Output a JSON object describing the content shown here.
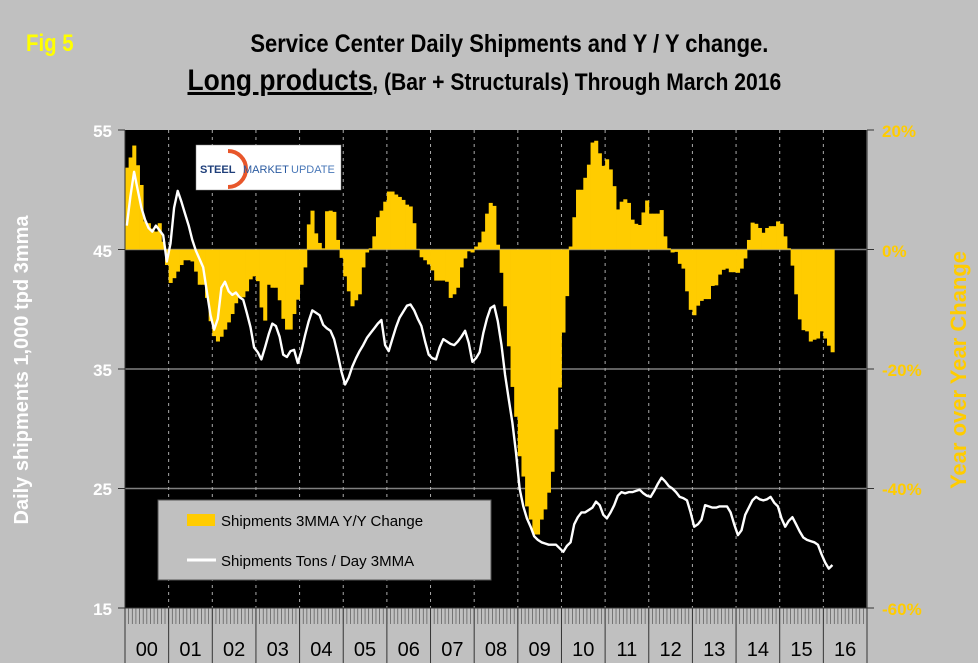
{
  "figure_label": "Fig 5",
  "title_line1": "Service Center Daily Shipments and Y / Y change.",
  "title_line2_emphasis": "Long products",
  "title_line2_rest": ", (Bar + Structurals) Through March 2016",
  "logo": {
    "word1": "STEEL",
    "word2": "MARKET",
    "word3": "UPDATE"
  },
  "colors": {
    "bars": "#ffcc00",
    "line": "#ffffff",
    "plot_bg": "#000000",
    "page_bg": "#c0c0c0",
    "fig_label": "#ffff00",
    "right_axis": "#ffcc00"
  },
  "chart_data": {
    "type": "bar+line",
    "title": "Service Center Daily Shipments and Y / Y change. Long products, (Bar + Structurals) Through March 2016",
    "x_range": [
      "2000-01",
      "2016-12"
    ],
    "x_tick_labels": [
      "00",
      "01",
      "02",
      "03",
      "04",
      "05",
      "06",
      "07",
      "08",
      "09",
      "10",
      "11",
      "12",
      "13",
      "14",
      "15",
      "16"
    ],
    "ylabel": "Daily shipments 1,000 tpd 3mma",
    "ylabel_right": "Year over Year Change",
    "ylim": [
      15,
      55
    ],
    "ylim_right": [
      -60,
      20
    ],
    "y_ticks": [
      "55",
      "45",
      "35",
      "25",
      "15"
    ],
    "y_ticks_right": [
      "20%",
      "0%",
      "-20%",
      "-40%",
      "-60%"
    ],
    "grid": "horizontal at major ticks, dotted vertical at years",
    "legend_position": "bottom-left",
    "series": [
      {
        "name": "Shipments 3MMA Y/Y Change",
        "type": "bar",
        "axis": "right",
        "unit": "%",
        "frequency": "monthly",
        "start": "2000-01",
        "values": [
          13.7,
          15.4,
          17.4,
          14.1,
          10.8,
          4.7,
          4.4,
          3.5,
          3.0,
          4.4,
          1.3,
          -2.6,
          -5.6,
          -4.8,
          -3.7,
          -2.6,
          -1.8,
          -1.8,
          -2.0,
          -3.7,
          -5.9,
          -5.9,
          -8.1,
          -12.0,
          -14.5,
          -15.4,
          -14.6,
          -13.4,
          -12.2,
          -10.8,
          -9.0,
          -8.0,
          -8.0,
          -7.0,
          -5.0,
          -4.5,
          -5.3,
          -9.7,
          -11.9,
          -5.9,
          -6.4,
          -6.4,
          -8.5,
          -11.6,
          -13.4,
          -13.4,
          -10.8,
          -8.4,
          -5.9,
          -3.0,
          4.2,
          6.5,
          2.7,
          1.1,
          0.2,
          6.4,
          6.5,
          6.3,
          1.6,
          -1.4,
          -4.5,
          -7.0,
          -9.5,
          -8.5,
          -7.5,
          -3.0,
          -0.5,
          0.2,
          2.2,
          5.4,
          6.5,
          8.0,
          9.7,
          9.7,
          9.2,
          8.8,
          8.3,
          7.5,
          7.2,
          4.4,
          0.1,
          -1.3,
          -1.8,
          -2.5,
          -3.5,
          -5.2,
          -5.2,
          -5.2,
          -5.4,
          -8.1,
          -7.5,
          -6.4,
          -3.0,
          -1.5,
          -0.3,
          -0.5,
          0.5,
          1.2,
          3.0,
          6.0,
          7.8,
          7.3,
          0.8,
          -3.9,
          -9.5,
          -16.2,
          -23.0,
          -28.0,
          -34.6,
          -38.0,
          -43.0,
          -45.2,
          -47.7,
          -47.7,
          -45.2,
          -43.5,
          -40.7,
          -37.2,
          -30.1,
          -23.1,
          -13.9,
          -7.8,
          0.5,
          5.4,
          10.0,
          10.0,
          12.0,
          14.2,
          17.9,
          18.2,
          16.1,
          14.0,
          15.1,
          13.4,
          10.6,
          6.7,
          8.0,
          8.4,
          7.8,
          5.0,
          4.3,
          4.1,
          6.2,
          8.2,
          6.0,
          6.0,
          6.0,
          6.6,
          2.2,
          0.2,
          -0.5,
          -0.4,
          -2.4,
          -3.2,
          -7.0,
          -10.1,
          -11.0,
          -9.4,
          -8.6,
          -8.3,
          -8.3,
          -6.1,
          -6.0,
          -4.2,
          -3.4,
          -3.2,
          -3.8,
          -3.8,
          -3.9,
          -3.2,
          -1.5,
          1.6,
          4.5,
          4.3,
          3.6,
          2.8,
          3.6,
          3.9,
          3.9,
          4.7,
          4.3,
          2.2,
          0.2,
          -2.7,
          -7.5,
          -11.7,
          -13.5,
          -13.7,
          -15.4,
          -15.1,
          -14.9,
          -13.7,
          -14.9,
          -16.1,
          -17.2
        ]
      },
      {
        "name": "Shipments Tons / Day 3MMA",
        "type": "line",
        "axis": "left",
        "unit": "1,000 tpd",
        "frequency": "monthly",
        "start": "2000-01",
        "values": [
          47.0,
          49.5,
          51.5,
          50.0,
          48.5,
          47.5,
          46.8,
          46.5,
          47.0,
          46.6,
          46.2,
          44.0,
          45.5,
          48.5,
          49.9,
          49.0,
          48.0,
          47.0,
          45.8,
          44.9,
          44.2,
          43.5,
          41.5,
          39.5,
          38.3,
          39.2,
          41.8,
          42.3,
          41.5,
          41.2,
          41.4,
          41.0,
          40.8,
          39.7,
          38.5,
          36.8,
          36.4,
          35.8,
          36.8,
          37.9,
          38.8,
          38.6,
          37.7,
          36.2,
          36.0,
          36.5,
          36.6,
          35.5,
          36.5,
          37.8,
          39.0,
          39.9,
          39.7,
          39.5,
          38.7,
          38.4,
          38.2,
          37.5,
          36.2,
          34.8,
          33.7,
          34.3,
          35.2,
          35.9,
          36.5,
          37.0,
          37.6,
          38.0,
          38.4,
          38.8,
          39.1,
          37.0,
          36.5,
          37.5,
          38.5,
          39.3,
          39.8,
          40.3,
          40.4,
          39.9,
          39.2,
          38.6,
          37.3,
          36.2,
          35.9,
          35.8,
          36.8,
          37.5,
          37.3,
          37.1,
          37.0,
          37.3,
          37.7,
          38.2,
          37.2,
          35.6,
          35.9,
          36.4,
          38.0,
          39.2,
          40.1,
          40.3,
          39.0,
          37.0,
          34.5,
          32.5,
          30.5,
          28.0,
          25.0,
          23.5,
          22.5,
          21.8,
          21.0,
          20.7,
          20.5,
          20.4,
          20.3,
          20.3,
          20.3,
          20.0,
          19.7,
          20.2,
          20.5,
          22.0,
          22.6,
          23.0,
          23.0,
          23.2,
          23.4,
          23.9,
          23.6,
          22.8,
          22.5,
          23.0,
          23.6,
          24.4,
          24.7,
          24.6,
          24.7,
          24.7,
          24.8,
          24.9,
          24.6,
          24.4,
          24.3,
          24.8,
          25.4,
          25.9,
          25.6,
          25.2,
          25.0,
          24.7,
          24.3,
          24.2,
          24.0,
          23.0,
          21.8,
          22.0,
          22.4,
          23.6,
          23.5,
          23.4,
          23.4,
          23.5,
          23.5,
          23.5,
          23.0,
          22.0,
          21.1,
          21.5,
          22.8,
          23.4,
          24.0,
          24.3,
          24.1,
          24.0,
          24.1,
          24.3,
          23.8,
          23.5,
          22.5,
          21.8,
          22.3,
          22.6,
          22.0,
          21.4,
          20.9,
          20.7,
          20.6,
          20.5,
          20.3,
          19.5,
          18.8,
          18.3,
          18.6
        ]
      }
    ]
  }
}
